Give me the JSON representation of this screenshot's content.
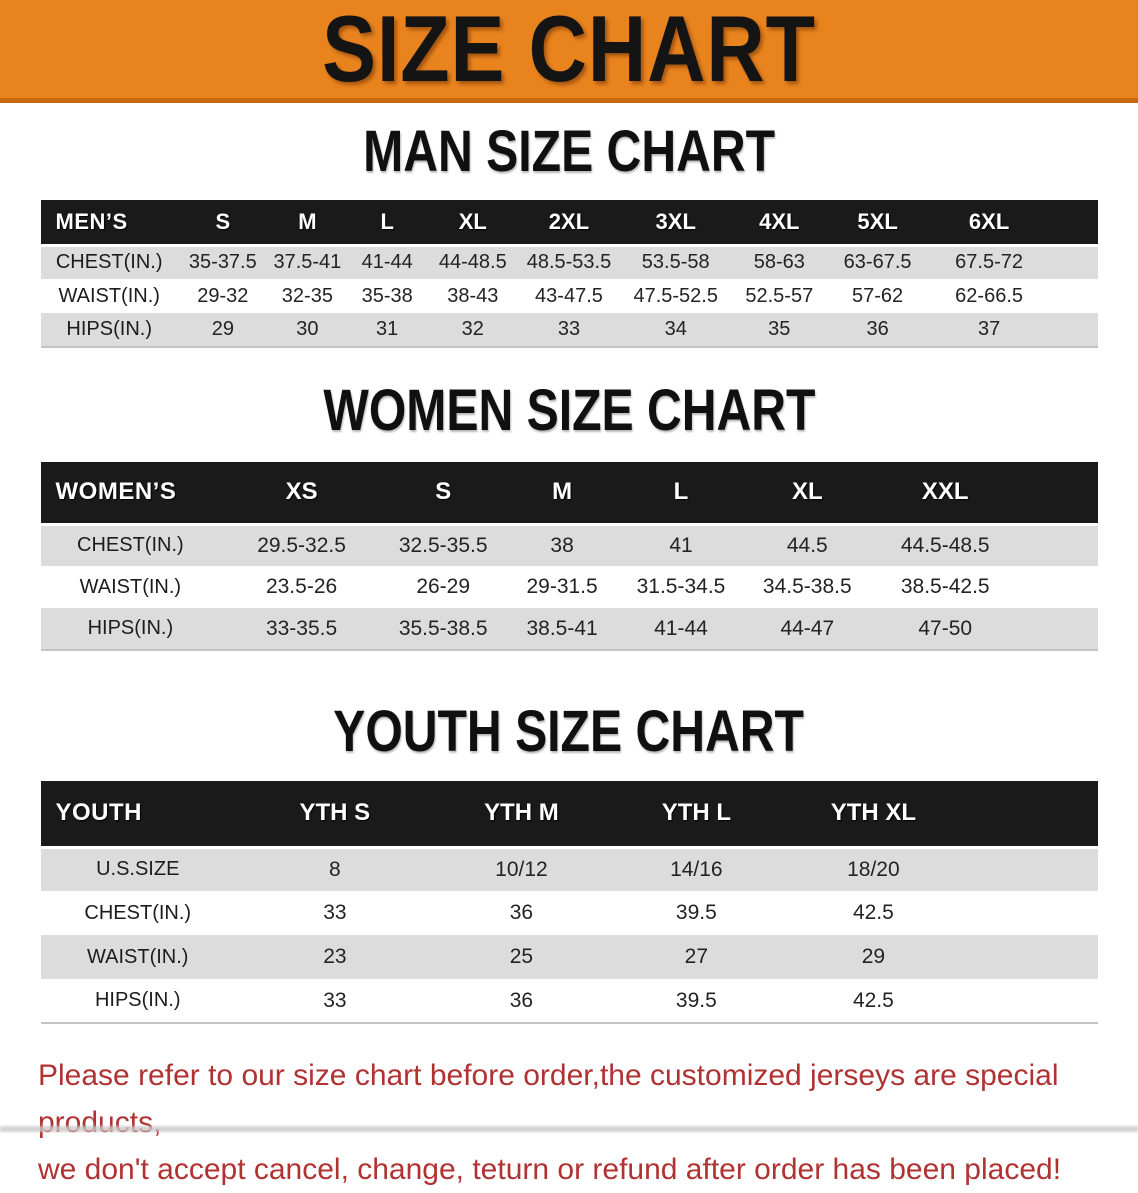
{
  "banner": {
    "title": "SIZE CHART"
  },
  "sections": [
    {
      "heading": "MAN SIZE CHART",
      "table": {
        "title": "MEN’S",
        "sizes": [
          "S",
          "M",
          "L",
          "XL",
          "2XL",
          "3XL",
          "4XL",
          "5XL",
          "6XL"
        ],
        "rows": [
          {
            "label": "CHEST(IN.)",
            "values": [
              "35-37.5",
              "37.5-41",
              "41-44",
              "44-48.5",
              "48.5-53.5",
              "53.5-58",
              "58-63",
              "63-67.5",
              "67.5-72"
            ]
          },
          {
            "label": "WAIST(IN.)",
            "values": [
              "29-32",
              "32-35",
              "35-38",
              "38-43",
              "43-47.5",
              "47.5-52.5",
              "52.5-57",
              "57-62",
              "62-66.5"
            ]
          },
          {
            "label": "HIPS(IN.)",
            "values": [
              "29",
              "30",
              "31",
              "32",
              "33",
              "34",
              "35",
              "36",
              "37"
            ]
          }
        ]
      }
    },
    {
      "heading": "WOMEN SIZE CHART",
      "table": {
        "title": "WOMEN’S",
        "sizes": [
          "XS",
          "S",
          "M",
          "L",
          "XL",
          "XXL"
        ],
        "rows": [
          {
            "label": "CHEST(IN.)",
            "values": [
              "29.5-32.5",
              "32.5-35.5",
              "38",
              "41",
              "44.5",
              "44.5-48.5"
            ]
          },
          {
            "label": "WAIST(IN.)",
            "values": [
              "23.5-26",
              "26-29",
              "29-31.5",
              "31.5-34.5",
              "34.5-38.5",
              "38.5-42.5"
            ]
          },
          {
            "label": "HIPS(IN.)",
            "values": [
              "33-35.5",
              "35.5-38.5",
              "38.5-41",
              "41-44",
              "44-47",
              "47-50"
            ]
          }
        ]
      }
    },
    {
      "heading": "YOUTH SIZE CHART",
      "table": {
        "title": "YOUTH",
        "sizes": [
          "YTH S",
          "YTH M",
          "YTH L",
          "YTH XL"
        ],
        "rows": [
          {
            "label": "U.S.SIZE",
            "values": [
              "8",
              "10/12",
              "14/16",
              "18/20"
            ]
          },
          {
            "label": "CHEST(IN.)",
            "values": [
              "33",
              "36",
              "39.5",
              "42.5"
            ]
          },
          {
            "label": "WAIST(IN.)",
            "values": [
              "23",
              "25",
              "27",
              "29"
            ]
          },
          {
            "label": "HIPS(IN.)",
            "values": [
              "33",
              "36",
              "39.5",
              "42.5"
            ]
          }
        ]
      }
    }
  ],
  "note": {
    "line1": "Please refer to our size chart before order,the customized jerseys are special products,",
    "line2": "we don't accept cancel, change, teturn or refund after order has been placed!"
  },
  "colors": {
    "banner_bg": "#E9831E",
    "banner_edge": "#C8680F",
    "banner_text": "#141414",
    "header_band": "#1A1A1A",
    "row_stripe": "#DCDCDC",
    "note_color": "#B13232"
  }
}
